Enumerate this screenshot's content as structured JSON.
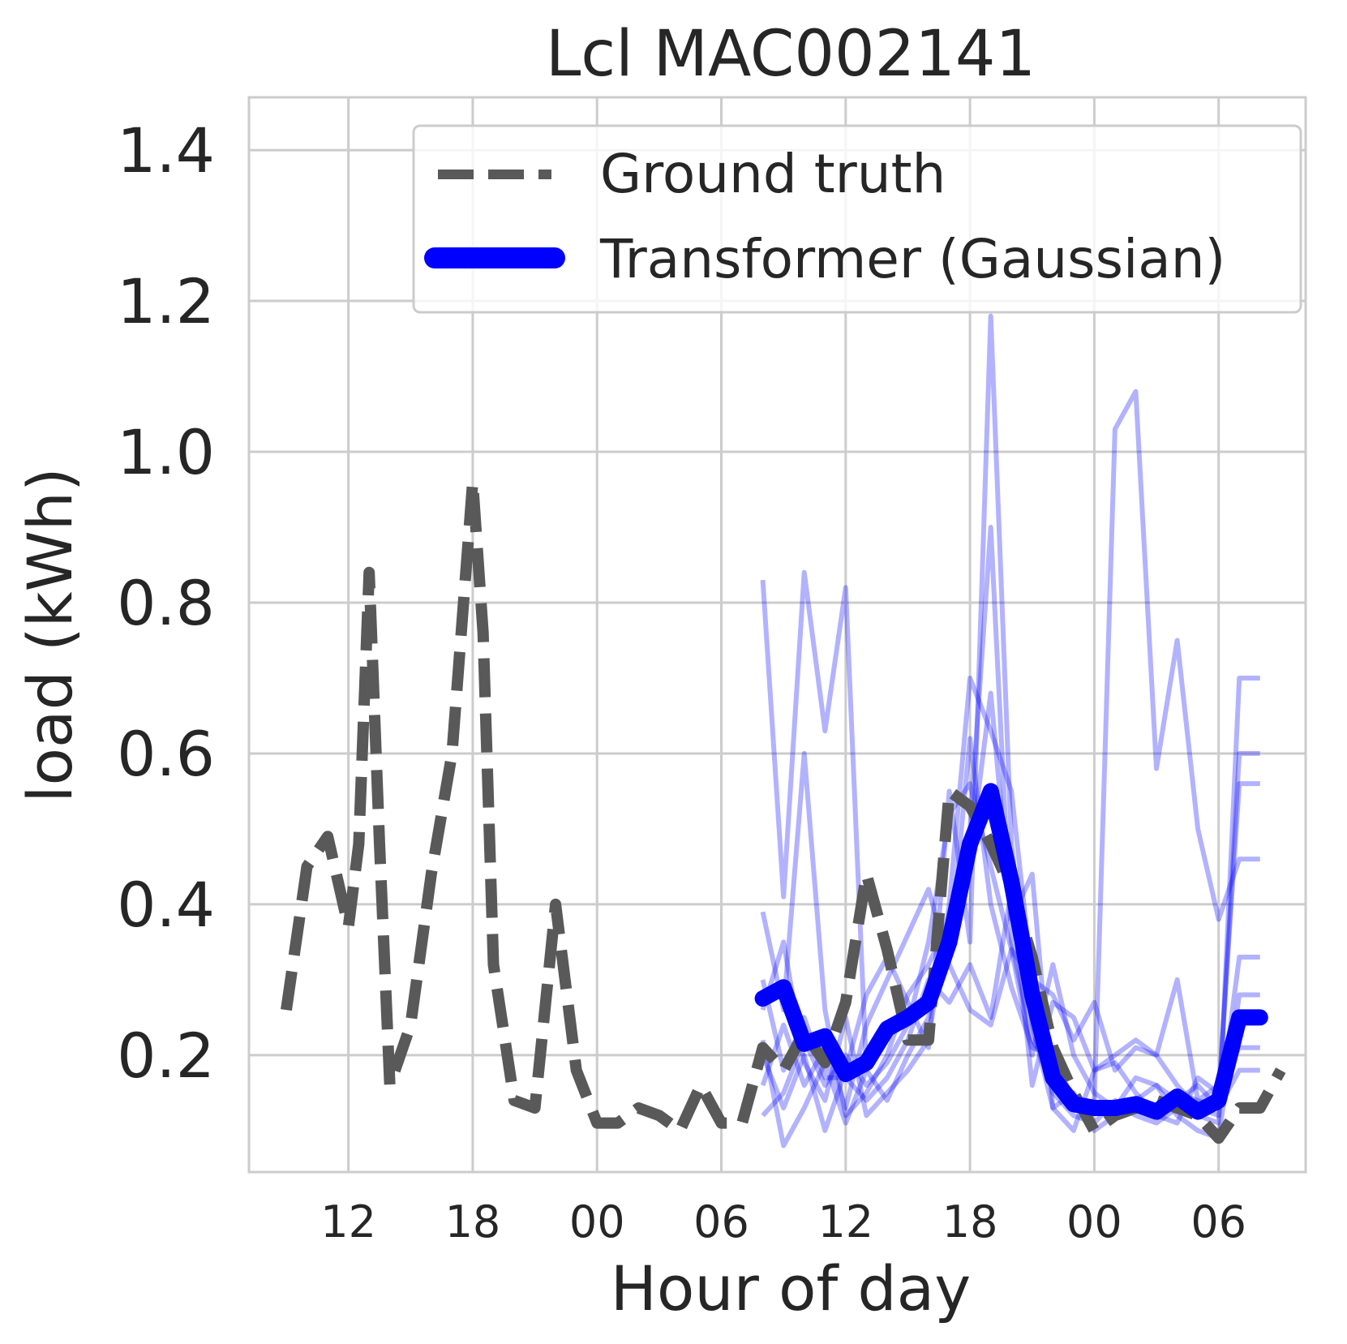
{
  "chart_data": {
    "type": "line",
    "title": "Lcl MAC002141",
    "xlabel": "Hour of day",
    "ylabel": "load (kWh)",
    "x_unit": "hours",
    "xlim": [
      7.2,
      58.2
    ],
    "ylim": [
      0.045,
      1.47
    ],
    "yticks": [
      0.2,
      0.4,
      0.6,
      0.8,
      1.0,
      1.2,
      1.4
    ],
    "ytick_labels": [
      "0.2",
      "0.4",
      "0.6",
      "0.8",
      "1.0",
      "1.2",
      "1.4"
    ],
    "xticks": [
      12,
      18,
      24,
      30,
      36,
      42,
      48,
      54
    ],
    "xtick_labels": [
      "12",
      "18",
      "00",
      "06",
      "12",
      "18",
      "00",
      "06"
    ],
    "grid": true,
    "legend_position": "upper-right",
    "colors": {
      "ground_truth": "#595959",
      "forecast": "#0000ff",
      "samples": "#0000ff",
      "grid": "#cccccc",
      "axes_edge": "#cccccc"
    },
    "series": [
      {
        "name": "Ground truth",
        "style": "dashed",
        "x": [
          9,
          10,
          11,
          11.5,
          12,
          12.5,
          13,
          13.5,
          14,
          15,
          16,
          17,
          18,
          18.5,
          19,
          20,
          21,
          22,
          23,
          24,
          25,
          26,
          27,
          28,
          29,
          30,
          31,
          32,
          33,
          34,
          35,
          36,
          37,
          38,
          39,
          40,
          41,
          42,
          43,
          44,
          45,
          46,
          47,
          48,
          49,
          50,
          51,
          52,
          53,
          54,
          55,
          56,
          57
        ],
        "y": [
          0.26,
          0.45,
          0.49,
          0.43,
          0.37,
          0.48,
          0.84,
          0.48,
          0.16,
          0.24,
          0.44,
          0.6,
          0.96,
          0.76,
          0.32,
          0.14,
          0.13,
          0.4,
          0.18,
          0.11,
          0.11,
          0.13,
          0.12,
          0.1,
          0.16,
          0.11,
          0.11,
          0.21,
          0.18,
          0.23,
          0.19,
          0.27,
          0.44,
          0.34,
          0.22,
          0.22,
          0.55,
          0.53,
          0.48,
          0.42,
          0.33,
          0.21,
          0.15,
          0.1,
          0.12,
          0.13,
          0.14,
          0.13,
          0.12,
          0.09,
          0.13,
          0.13,
          0.18
        ]
      },
      {
        "name": "Transformer (Gaussian)",
        "style": "solid",
        "x": [
          32,
          33,
          34,
          35,
          36,
          37,
          38,
          39,
          40,
          41,
          42,
          43,
          44,
          45,
          46,
          47,
          48,
          49,
          50,
          51,
          52,
          53,
          54,
          55,
          56
        ],
        "y": [
          0.275,
          0.29,
          0.215,
          0.225,
          0.175,
          0.19,
          0.235,
          0.25,
          0.27,
          0.35,
          0.48,
          0.55,
          0.43,
          0.28,
          0.17,
          0.135,
          0.13,
          0.13,
          0.135,
          0.125,
          0.145,
          0.125,
          0.14,
          0.25,
          0.25
        ]
      }
    ],
    "sample_x": [
      32,
      33,
      34,
      35,
      36,
      37,
      38,
      39,
      40,
      41,
      42,
      43,
      44,
      45,
      46,
      47,
      48,
      49,
      50,
      51,
      52,
      53,
      54,
      55,
      56
    ],
    "samples": [
      [
        0.83,
        0.41,
        0.84,
        0.63,
        0.82,
        0.18,
        0.23,
        0.26,
        0.28,
        0.33,
        0.62,
        0.4,
        0.29,
        0.21,
        0.2,
        0.14,
        0.13,
        0.12,
        0.13,
        0.12,
        0.15,
        0.14,
        0.13,
        0.6,
        0.6
      ],
      [
        0.39,
        0.26,
        0.6,
        0.26,
        0.12,
        0.15,
        0.2,
        0.28,
        0.32,
        0.38,
        0.5,
        0.9,
        0.35,
        0.22,
        0.18,
        0.13,
        0.14,
        1.03,
        1.08,
        0.58,
        0.75,
        0.5,
        0.38,
        0.46,
        0.46
      ],
      [
        0.26,
        0.35,
        0.19,
        0.14,
        0.25,
        0.12,
        0.15,
        0.18,
        0.22,
        0.4,
        0.7,
        0.63,
        0.55,
        0.3,
        0.15,
        0.12,
        0.11,
        0.14,
        0.12,
        0.11,
        0.13,
        0.12,
        0.11,
        0.7,
        0.7
      ],
      [
        0.2,
        0.13,
        0.2,
        0.1,
        0.18,
        0.28,
        0.33,
        0.27,
        0.21,
        0.55,
        0.35,
        1.18,
        0.48,
        0.24,
        0.13,
        0.15,
        0.1,
        0.12,
        0.14,
        0.16,
        0.12,
        0.1,
        0.09,
        0.28,
        0.28
      ],
      [
        0.16,
        0.24,
        0.16,
        0.21,
        0.13,
        0.24,
        0.3,
        0.36,
        0.42,
        0.32,
        0.26,
        0.24,
        0.34,
        0.3,
        0.28,
        0.22,
        0.27,
        0.18,
        0.21,
        0.2,
        0.3,
        0.14,
        0.16,
        0.21,
        0.21
      ],
      [
        0.3,
        0.18,
        0.25,
        0.17,
        0.17,
        0.14,
        0.17,
        0.22,
        0.3,
        0.27,
        0.32,
        0.25,
        0.42,
        0.16,
        0.27,
        0.25,
        0.18,
        0.2,
        0.22,
        0.2,
        0.16,
        0.13,
        0.12,
        0.33,
        0.33
      ],
      [
        0.12,
        0.15,
        0.22,
        0.16,
        0.2,
        0.16,
        0.19,
        0.24,
        0.35,
        0.52,
        0.56,
        0.45,
        0.34,
        0.2,
        0.32,
        0.2,
        0.15,
        0.13,
        0.17,
        0.16,
        0.14,
        0.16,
        0.13,
        0.18,
        0.18
      ],
      [
        0.22,
        0.08,
        0.13,
        0.19,
        0.11,
        0.18,
        0.14,
        0.2,
        0.25,
        0.37,
        0.46,
        0.68,
        0.38,
        0.44,
        0.13,
        0.1,
        0.18,
        0.19,
        0.15,
        0.12,
        0.11,
        0.17,
        0.15,
        0.56,
        0.56
      ]
    ]
  },
  "legend": {
    "ground_truth_label": "Ground truth",
    "forecast_label": "Transformer (Gaussian)"
  }
}
